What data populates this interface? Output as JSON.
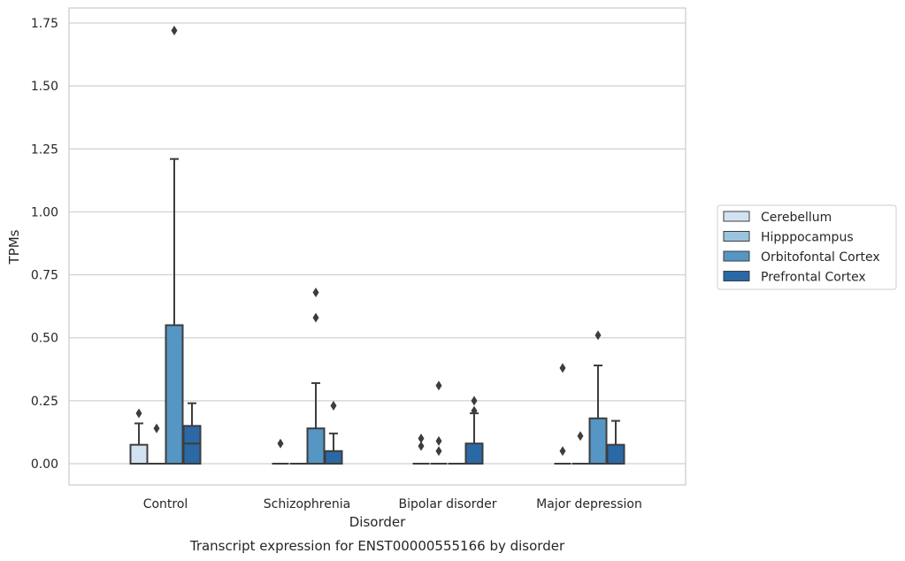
{
  "chart_data": {
    "type": "box",
    "title": "",
    "xlabel": "Disorder",
    "ylabel": "TPMs",
    "caption": "Transcript expression for ENST00000555166 by disorder",
    "categories": [
      "Control",
      "Schizophrenia",
      "Bipolar disorder",
      "Major depression"
    ],
    "ylim": [
      -0.08,
      1.81
    ],
    "yticks": [
      0.0,
      0.25,
      0.5,
      0.75,
      1.0,
      1.25,
      1.5,
      1.75
    ],
    "ytick_labels": [
      "0.00",
      "0.25",
      "0.50",
      "0.75",
      "1.00",
      "1.25",
      "1.50",
      "1.75"
    ],
    "grid": "horizontal",
    "legend_position": "right",
    "series": [
      {
        "name": "Cerebellum",
        "color": "#d3e2f2",
        "boxes": [
          {
            "q1": 0,
            "median": 0,
            "q3": 0.075,
            "whisker_low": 0,
            "whisker_high": 0.16,
            "outliers": [
              0.2
            ]
          },
          {
            "q1": 0,
            "median": 0,
            "q3": 0,
            "whisker_low": 0,
            "whisker_high": 0,
            "outliers": [
              0.08
            ]
          },
          {
            "q1": 0,
            "median": 0,
            "q3": 0,
            "whisker_low": 0,
            "whisker_high": 0,
            "outliers": [
              0.07,
              0.1
            ]
          },
          {
            "q1": 0,
            "median": 0,
            "q3": 0,
            "whisker_low": 0,
            "whisker_high": 0,
            "outliers": [
              0.05,
              0.38
            ]
          }
        ]
      },
      {
        "name": "Hipppocampus",
        "color": "#9ac3de",
        "boxes": [
          {
            "q1": 0,
            "median": 0,
            "q3": 0,
            "whisker_low": 0,
            "whisker_high": 0,
            "outliers": [
              0.14
            ]
          },
          {
            "q1": 0,
            "median": 0,
            "q3": 0,
            "whisker_low": 0,
            "whisker_high": 0,
            "outliers": []
          },
          {
            "q1": 0,
            "median": 0,
            "q3": 0,
            "whisker_low": 0,
            "whisker_high": 0,
            "outliers": [
              0.05,
              0.09,
              0.31
            ]
          },
          {
            "q1": 0,
            "median": 0,
            "q3": 0,
            "whisker_low": 0,
            "whisker_high": 0,
            "outliers": [
              0.11
            ]
          }
        ]
      },
      {
        "name": "Orbitofontal Cortex",
        "color": "#5596c5",
        "boxes": [
          {
            "q1": 0,
            "median": 0,
            "q3": 0.55,
            "whisker_low": 0,
            "whisker_high": 1.21,
            "outliers": [
              1.72
            ]
          },
          {
            "q1": 0,
            "median": 0,
            "q3": 0.14,
            "whisker_low": 0,
            "whisker_high": 0.32,
            "outliers": [
              0.58,
              0.68
            ]
          },
          {
            "q1": 0,
            "median": 0,
            "q3": 0,
            "whisker_low": 0,
            "whisker_high": 0,
            "outliers": []
          },
          {
            "q1": 0,
            "median": 0,
            "q3": 0.18,
            "whisker_low": 0,
            "whisker_high": 0.39,
            "outliers": [
              0.51
            ]
          }
        ]
      },
      {
        "name": "Prefrontal Cortex",
        "color": "#2b68a6",
        "boxes": [
          {
            "q1": 0,
            "median": 0.08,
            "q3": 0.15,
            "whisker_low": 0,
            "whisker_high": 0.24,
            "outliers": []
          },
          {
            "q1": 0,
            "median": 0,
            "q3": 0.05,
            "whisker_low": 0,
            "whisker_high": 0.12,
            "outliers": [
              0.23
            ]
          },
          {
            "q1": 0,
            "median": 0,
            "q3": 0.08,
            "whisker_low": 0,
            "whisker_high": 0.2,
            "outliers": [
              0.21,
              0.25
            ]
          },
          {
            "q1": 0,
            "median": 0,
            "q3": 0.075,
            "whisker_low": 0,
            "whisker_high": 0.17,
            "outliers": []
          }
        ]
      }
    ]
  }
}
